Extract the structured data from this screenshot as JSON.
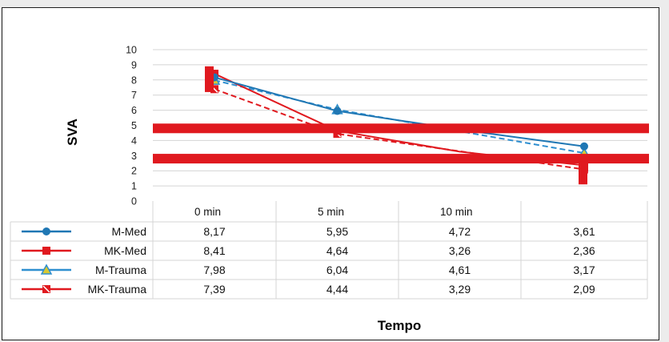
{
  "chart_data": {
    "type": "line",
    "categories": [
      "0 min",
      "5 min",
      "10 min",
      ""
    ],
    "ylabel": "SVA",
    "xlabel": "Tempo",
    "ylim": [
      0,
      10
    ],
    "yticks": [
      0,
      1,
      2,
      3,
      4,
      5,
      6,
      7,
      8,
      9,
      10
    ],
    "grid": true,
    "legend": "table-left",
    "series": [
      {
        "name": "M-Med",
        "color": "#1f77b4",
        "dash": "solid",
        "marker": "circle",
        "values": [
          8.17,
          5.95,
          4.72,
          3.61
        ],
        "labels": [
          "8,17",
          "5,95",
          "4,72",
          "3,61"
        ]
      },
      {
        "name": "MK-Med",
        "color": "#e0191f",
        "dash": "solid",
        "marker": "square",
        "values": [
          8.41,
          4.64,
          3.26,
          2.36
        ],
        "labels": [
          "8,41",
          "4,64",
          "3,26",
          "2,36"
        ]
      },
      {
        "name": "M-Trauma",
        "color": "#2f8fd0",
        "dash": "dashed",
        "marker": "triangle",
        "values": [
          7.98,
          6.04,
          4.61,
          3.17
        ],
        "labels": [
          "7,98",
          "6,04",
          "4,61",
          "3,17"
        ]
      },
      {
        "name": "MK-Trauma",
        "color": "#e0191f",
        "dash": "dashed",
        "marker": "square-x",
        "values": [
          7.39,
          4.44,
          3.29,
          2.09
        ],
        "labels": [
          "7,39",
          "4,44",
          "3,29",
          "2,09"
        ]
      }
    ],
    "reference_bands": [
      4.8,
      2.8
    ],
    "colors": {
      "band": "#e0191f",
      "grid": "#d4d4d4",
      "triangle_fill": "#d8c830"
    }
  }
}
